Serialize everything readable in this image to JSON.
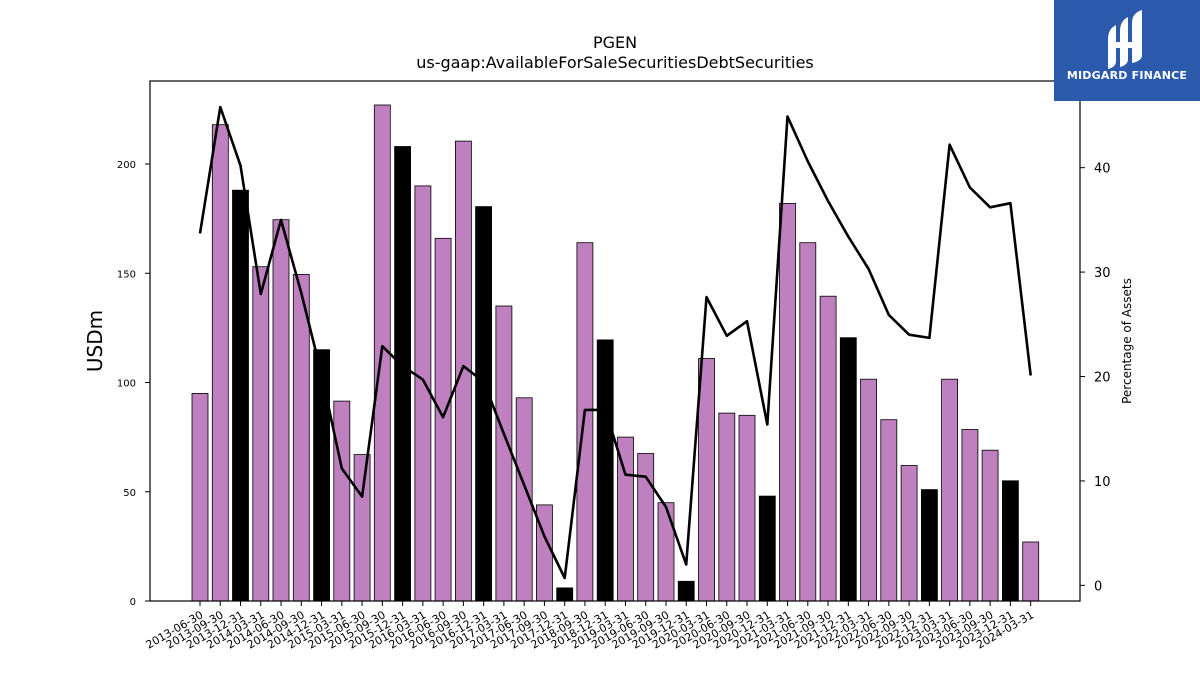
{
  "chart_data": {
    "type": "bar",
    "title": "PGEN",
    "subtitle": "us-gaap:AvailableForSaleSecuritiesDebtSecurities",
    "ylabel": "USDm",
    "y2label": "Percentage of Assets",
    "ylim": [
      0,
      238
    ],
    "y2lim": [
      -1.5,
      48.3
    ],
    "yticks": [
      0,
      50,
      100,
      150,
      200
    ],
    "y2ticks": [
      0,
      10,
      20,
      30,
      40
    ],
    "grid": false,
    "categories": [
      "2013-06-30",
      "2013-09-30",
      "2013-12-31",
      "2014-03-31",
      "2014-06-30",
      "2014-09-30",
      "2014-12-31",
      "2015-03-31",
      "2015-06-30",
      "2015-09-30",
      "2015-12-31",
      "2016-03-31",
      "2016-06-30",
      "2016-09-30",
      "2016-12-31",
      "2017-03-31",
      "2017-06-30",
      "2017-09-30",
      "2017-12-31",
      "2018-09-30",
      "2018-12-31",
      "2019-03-31",
      "2019-06-30",
      "2019-09-30",
      "2019-12-31",
      "2020-03-31",
      "2020-06-30",
      "2020-09-30",
      "2020-12-31",
      "2021-03-31",
      "2021-06-30",
      "2021-09-30",
      "2021-12-31",
      "2022-03-31",
      "2022-06-30",
      "2022-09-30",
      "2022-12-31",
      "2023-03-31",
      "2023-06-30",
      "2023-09-30",
      "2023-12-31",
      "2024-03-31"
    ],
    "series": [
      {
        "chart": "bar",
        "axis": "left",
        "values": [
          95,
          218,
          188,
          153,
          174.5,
          149.5,
          115,
          91.5,
          67,
          227,
          208,
          190,
          166,
          210.5,
          180.5,
          135,
          93,
          44,
          6,
          164,
          119.5,
          75,
          67.5,
          45,
          9,
          111,
          86,
          85,
          48,
          182,
          164,
          139.5,
          120.5,
          101.5,
          83,
          62,
          51,
          101.5,
          78.5,
          69,
          55,
          27
        ],
        "highlight": [
          false,
          false,
          true,
          false,
          false,
          false,
          true,
          false,
          false,
          false,
          true,
          false,
          false,
          false,
          true,
          false,
          false,
          false,
          true,
          false,
          true,
          false,
          false,
          false,
          true,
          false,
          false,
          false,
          true,
          false,
          false,
          false,
          true,
          false,
          false,
          false,
          true,
          false,
          false,
          false,
          true,
          false
        ]
      },
      {
        "chart": "line",
        "axis": "right",
        "values": [
          33.7,
          45.8,
          40.2,
          27.9,
          35.0,
          28.0,
          20.2,
          11.2,
          8.5,
          22.9,
          21.0,
          19.7,
          16.1,
          21.0,
          19.5,
          14.5,
          9.6,
          4.7,
          0.7,
          16.8,
          16.8,
          10.6,
          10.4,
          7.5,
          2.0,
          27.6,
          23.9,
          25.3,
          15.4,
          44.9,
          40.6,
          36.8,
          33.4,
          30.3,
          25.9,
          24.0,
          23.7,
          42.2,
          38.1,
          36.2,
          36.6,
          20.1
        ]
      }
    ],
    "colors": {
      "bar": "#bf80bf",
      "bar_highlight": "#000000",
      "line": "#000000"
    }
  },
  "logo": {
    "text": "MIDGARD FINANCE",
    "background": "#2b5aad"
  }
}
